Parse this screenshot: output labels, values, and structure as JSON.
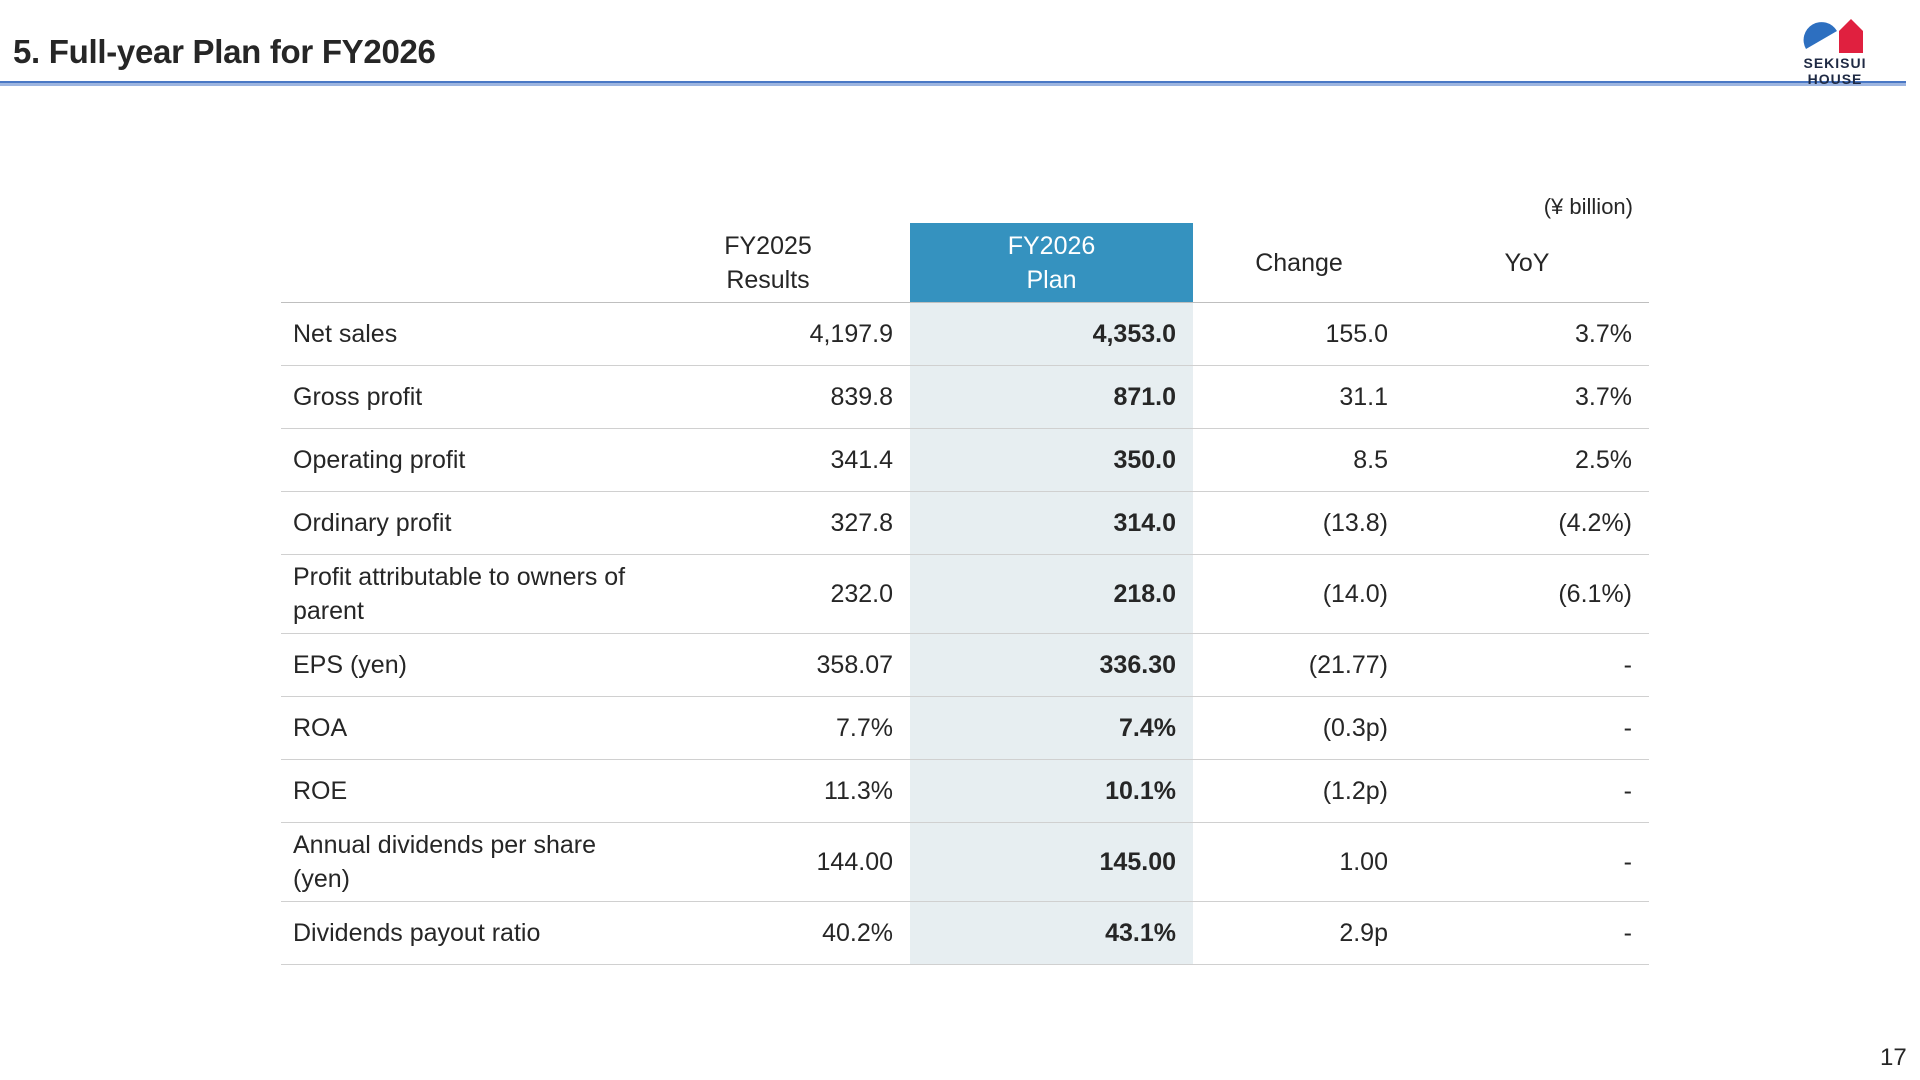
{
  "title": "5. Full-year Plan for FY2026",
  "logo": {
    "text": "SEKISUI HOUSE",
    "colors": {
      "blue": "#2d6fc0",
      "red": "#e0203f"
    }
  },
  "unit_note": "(¥ billion)",
  "columns": [
    {
      "line1": "FY2025",
      "line2": "Results"
    },
    {
      "line1": "FY2026",
      "line2": "Plan"
    },
    {
      "line1": "Change",
      "line2": ""
    },
    {
      "line1": "YoY",
      "line2": ""
    }
  ],
  "rows": [
    {
      "label": "Net sales",
      "fy2025": "4,197.9",
      "fy2026": "4,353.0",
      "change": "155.0",
      "yoy": "3.7%"
    },
    {
      "label": "Gross profit",
      "fy2025": "839.8",
      "fy2026": "871.0",
      "change": "31.1",
      "yoy": "3.7%"
    },
    {
      "label": "Operating profit",
      "fy2025": "341.4",
      "fy2026": "350.0",
      "change": "8.5",
      "yoy": "2.5%"
    },
    {
      "label": "Ordinary profit",
      "fy2025": "327.8",
      "fy2026": "314.0",
      "change": "(13.8)",
      "yoy": "(4.2%)"
    },
    {
      "label": "Profit attributable to owners of parent",
      "fy2025": "232.0",
      "fy2026": "218.0",
      "change": "(14.0)",
      "yoy": "(6.1%)"
    },
    {
      "label": "EPS (yen)",
      "fy2025": "358.07",
      "fy2026": "336.30",
      "change": "(21.77)",
      "yoy": "-"
    },
    {
      "label": "ROA",
      "fy2025": "7.7%",
      "fy2026": "7.4%",
      "change": "(0.3p)",
      "yoy": "-"
    },
    {
      "label": "ROE",
      "fy2025": "11.3%",
      "fy2026": "10.1%",
      "change": "(1.2p)",
      "yoy": "-"
    },
    {
      "label": "Annual dividends per share (yen)",
      "fy2025": "144.00",
      "fy2026": "145.00",
      "change": "1.00",
      "yoy": "-"
    },
    {
      "label": "Dividends payout ratio",
      "fy2025": "40.2%",
      "fy2026": "43.1%",
      "change": "2.9p",
      "yoy": "-"
    }
  ],
  "page_number": "17",
  "colors": {
    "plan_header": "#3592bf",
    "plan_column": "#e7eef1",
    "title_rule": "#4a78c5"
  }
}
